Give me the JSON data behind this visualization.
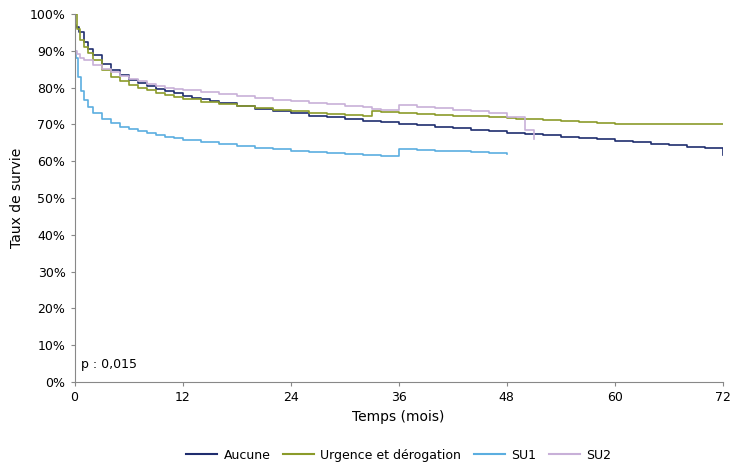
{
  "xlabel": "Temps (mois)",
  "ylabel": "Taux de survie",
  "xlim": [
    0,
    72
  ],
  "ylim": [
    0,
    1.0
  ],
  "yticks": [
    0.0,
    0.1,
    0.2,
    0.3,
    0.4,
    0.5,
    0.6,
    0.7,
    0.8,
    0.9,
    1.0
  ],
  "xticks": [
    0,
    12,
    24,
    36,
    48,
    60,
    72
  ],
  "p_value_text": "p : 0,015",
  "background_color": "#ffffff",
  "linewidth": 1.2,
  "aucune_color": "#1f2d6e",
  "urgence_color": "#8b9b2a",
  "su1_color": "#5baee0",
  "su2_color": "#c8b0d8",
  "aucune_x": [
    0,
    0.2,
    0.5,
    1,
    1.5,
    2,
    3,
    4,
    5,
    6,
    7,
    8,
    9,
    10,
    11,
    12,
    13,
    14,
    15,
    16,
    18,
    20,
    22,
    24,
    26,
    28,
    30,
    32,
    34,
    36,
    38,
    40,
    42,
    44,
    46,
    48,
    50,
    52,
    54,
    56,
    58,
    60,
    62,
    64,
    66,
    68,
    70,
    72
  ],
  "aucune_y": [
    0.97,
    0.965,
    0.95,
    0.925,
    0.905,
    0.888,
    0.863,
    0.848,
    0.835,
    0.822,
    0.812,
    0.804,
    0.797,
    0.79,
    0.784,
    0.778,
    0.773,
    0.768,
    0.763,
    0.758,
    0.75,
    0.742,
    0.736,
    0.73,
    0.724,
    0.719,
    0.714,
    0.71,
    0.706,
    0.702,
    0.698,
    0.694,
    0.69,
    0.686,
    0.682,
    0.678,
    0.674,
    0.67,
    0.667,
    0.664,
    0.66,
    0.656,
    0.652,
    0.648,
    0.644,
    0.64,
    0.636,
    0.617
  ],
  "urgence_x": [
    0,
    0.3,
    0.6,
    1,
    1.5,
    2,
    3,
    4,
    5,
    6,
    7,
    8,
    9,
    10,
    11,
    12,
    14,
    16,
    18,
    20,
    22,
    24,
    26,
    28,
    30,
    32,
    33,
    34,
    36,
    38,
    40,
    42,
    44,
    46,
    48,
    49,
    50,
    52,
    54,
    56,
    58,
    60,
    72
  ],
  "urgence_y": [
    1.0,
    0.96,
    0.93,
    0.91,
    0.895,
    0.875,
    0.848,
    0.83,
    0.818,
    0.808,
    0.8,
    0.793,
    0.786,
    0.78,
    0.775,
    0.77,
    0.762,
    0.755,
    0.749,
    0.744,
    0.74,
    0.736,
    0.732,
    0.729,
    0.726,
    0.723,
    0.736,
    0.733,
    0.73,
    0.728,
    0.726,
    0.724,
    0.722,
    0.72,
    0.718,
    0.716,
    0.714,
    0.712,
    0.71,
    0.706,
    0.703,
    0.7,
    0.7
  ],
  "su1_x": [
    0,
    0.2,
    0.4,
    0.7,
    1,
    1.5,
    2,
    3,
    4,
    5,
    6,
    7,
    8,
    9,
    10,
    11,
    12,
    14,
    16,
    18,
    20,
    22,
    24,
    26,
    28,
    30,
    32,
    34,
    36,
    38,
    40,
    42,
    44,
    46,
    48
  ],
  "su1_y": [
    0.9,
    0.88,
    0.83,
    0.79,
    0.765,
    0.748,
    0.732,
    0.715,
    0.703,
    0.694,
    0.687,
    0.681,
    0.676,
    0.671,
    0.667,
    0.663,
    0.659,
    0.653,
    0.647,
    0.642,
    0.637,
    0.633,
    0.629,
    0.626,
    0.622,
    0.619,
    0.617,
    0.615,
    0.634,
    0.631,
    0.629,
    0.627,
    0.625,
    0.622,
    0.62
  ],
  "su2_x": [
    0,
    0.3,
    0.6,
    1,
    2,
    3,
    4,
    5,
    6,
    7,
    8,
    9,
    10,
    11,
    12,
    14,
    16,
    18,
    20,
    22,
    24,
    26,
    28,
    30,
    32,
    33,
    34,
    36,
    38,
    40,
    42,
    44,
    46,
    48,
    50,
    51
  ],
  "su2_y": [
    0.9,
    0.89,
    0.88,
    0.875,
    0.862,
    0.85,
    0.842,
    0.832,
    0.824,
    0.817,
    0.811,
    0.805,
    0.8,
    0.796,
    0.793,
    0.787,
    0.782,
    0.777,
    0.772,
    0.767,
    0.763,
    0.759,
    0.755,
    0.75,
    0.746,
    0.742,
    0.738,
    0.752,
    0.748,
    0.744,
    0.74,
    0.736,
    0.731,
    0.72,
    0.685,
    0.66
  ]
}
